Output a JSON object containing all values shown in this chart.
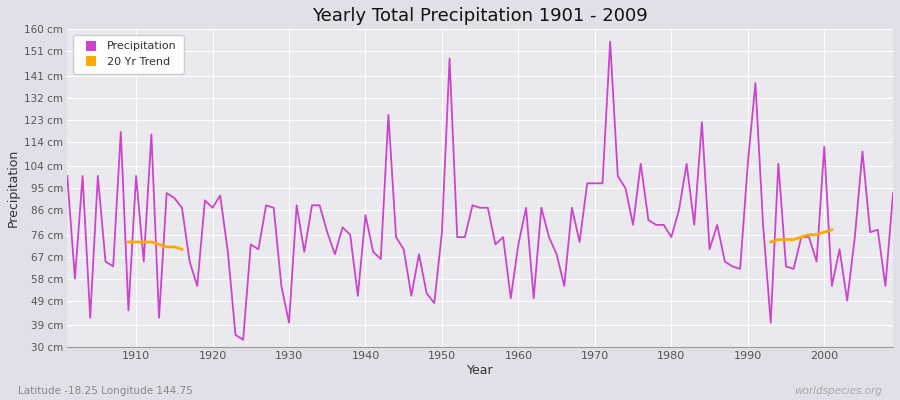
{
  "title": "Yearly Total Precipitation 1901 - 2009",
  "xlabel": "Year",
  "ylabel": "Precipitation",
  "subtitle": "Latitude -18.25 Longitude 144.75",
  "watermark": "worldspecies.org",
  "line_color": "#cc44cc",
  "trend_color": "#ffaa00",
  "bg_color": "#e0e0e8",
  "plot_bg_color": "#eaeaee",
  "ylim": [
    30,
    160
  ],
  "yticks": [
    30,
    39,
    49,
    58,
    67,
    76,
    86,
    95,
    104,
    114,
    123,
    132,
    141,
    151,
    160
  ],
  "xlim": [
    1901,
    2009
  ],
  "xticks": [
    1910,
    1920,
    1930,
    1940,
    1950,
    1960,
    1970,
    1980,
    1990,
    2000
  ],
  "years": [
    1901,
    1902,
    1903,
    1904,
    1905,
    1906,
    1907,
    1908,
    1909,
    1910,
    1911,
    1912,
    1913,
    1914,
    1915,
    1916,
    1917,
    1918,
    1919,
    1920,
    1921,
    1922,
    1923,
    1924,
    1925,
    1926,
    1927,
    1928,
    1929,
    1930,
    1931,
    1932,
    1933,
    1934,
    1935,
    1936,
    1937,
    1938,
    1939,
    1940,
    1941,
    1942,
    1943,
    1944,
    1945,
    1946,
    1947,
    1948,
    1949,
    1950,
    1951,
    1952,
    1953,
    1954,
    1955,
    1956,
    1957,
    1958,
    1959,
    1960,
    1961,
    1962,
    1963,
    1964,
    1965,
    1966,
    1967,
    1968,
    1969,
    1970,
    1971,
    1972,
    1973,
    1974,
    1975,
    1976,
    1977,
    1978,
    1979,
    1980,
    1981,
    1982,
    1983,
    1984,
    1985,
    1986,
    1987,
    1988,
    1989,
    1990,
    1991,
    1992,
    1993,
    1994,
    1995,
    1996,
    1997,
    1998,
    1999,
    2000,
    2001,
    2002,
    2003,
    2004,
    2005,
    2006,
    2007,
    2008,
    2009
  ],
  "precip": [
    100,
    58,
    100,
    42,
    100,
    65,
    63,
    118,
    45,
    100,
    65,
    117,
    42,
    93,
    91,
    87,
    65,
    55,
    90,
    87,
    92,
    69,
    35,
    33,
    72,
    70,
    88,
    87,
    55,
    40,
    88,
    69,
    88,
    88,
    77,
    68,
    79,
    76,
    51,
    84,
    69,
    66,
    125,
    75,
    70,
    51,
    68,
    52,
    48,
    77,
    148,
    75,
    75,
    88,
    87,
    87,
    72,
    75,
    50,
    72,
    87,
    50,
    87,
    75,
    68,
    55,
    87,
    73,
    97,
    97,
    97,
    155,
    100,
    95,
    80,
    105,
    82,
    80,
    80,
    75,
    86,
    105,
    80,
    122,
    70,
    80,
    65,
    63,
    62,
    105,
    138,
    80,
    40,
    105,
    63,
    62,
    75,
    75,
    65,
    112,
    55,
    70,
    49,
    75,
    110,
    77,
    78,
    55,
    93
  ],
  "trend1_years": [
    1909,
    1910,
    1911,
    1912,
    1913,
    1914,
    1915,
    1916
  ],
  "trend1_vals": [
    73,
    73,
    73,
    73,
    72,
    71,
    71,
    70
  ],
  "trend2_years": [
    1993,
    1994,
    1995,
    1996,
    1997,
    1998,
    1999,
    2000,
    2001
  ],
  "trend2_vals": [
    73,
    74,
    74,
    74,
    75,
    76,
    76,
    77,
    78
  ]
}
